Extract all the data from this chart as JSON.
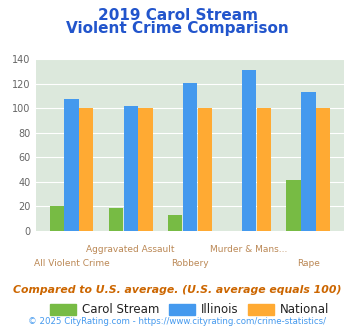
{
  "title_line1": "2019 Carol Stream",
  "title_line2": "Violent Crime Comparison",
  "cat_labels_row1": [
    "",
    "Aggravated Assault",
    "",
    "Murder & Mans...",
    ""
  ],
  "cat_labels_row2": [
    "All Violent Crime",
    "",
    "Robbery",
    "",
    "Rape"
  ],
  "carol_stream": [
    20,
    19,
    13,
    0,
    42
  ],
  "illinois": [
    108,
    102,
    121,
    131,
    113
  ],
  "national": [
    100,
    100,
    100,
    100,
    100
  ],
  "color_carol": "#77bb44",
  "color_illinois": "#4499ee",
  "color_national": "#ffaa33",
  "ylim": [
    0,
    140
  ],
  "yticks": [
    0,
    20,
    40,
    60,
    80,
    100,
    120,
    140
  ],
  "plot_bg": "#dce8dc",
  "title_color": "#2255cc",
  "subtitle_note": "Compared to U.S. average. (U.S. average equals 100)",
  "footer": "© 2025 CityRating.com - https://www.cityrating.com/crime-statistics/",
  "subtitle_color": "#cc6600",
  "footer_color": "#4499ee"
}
